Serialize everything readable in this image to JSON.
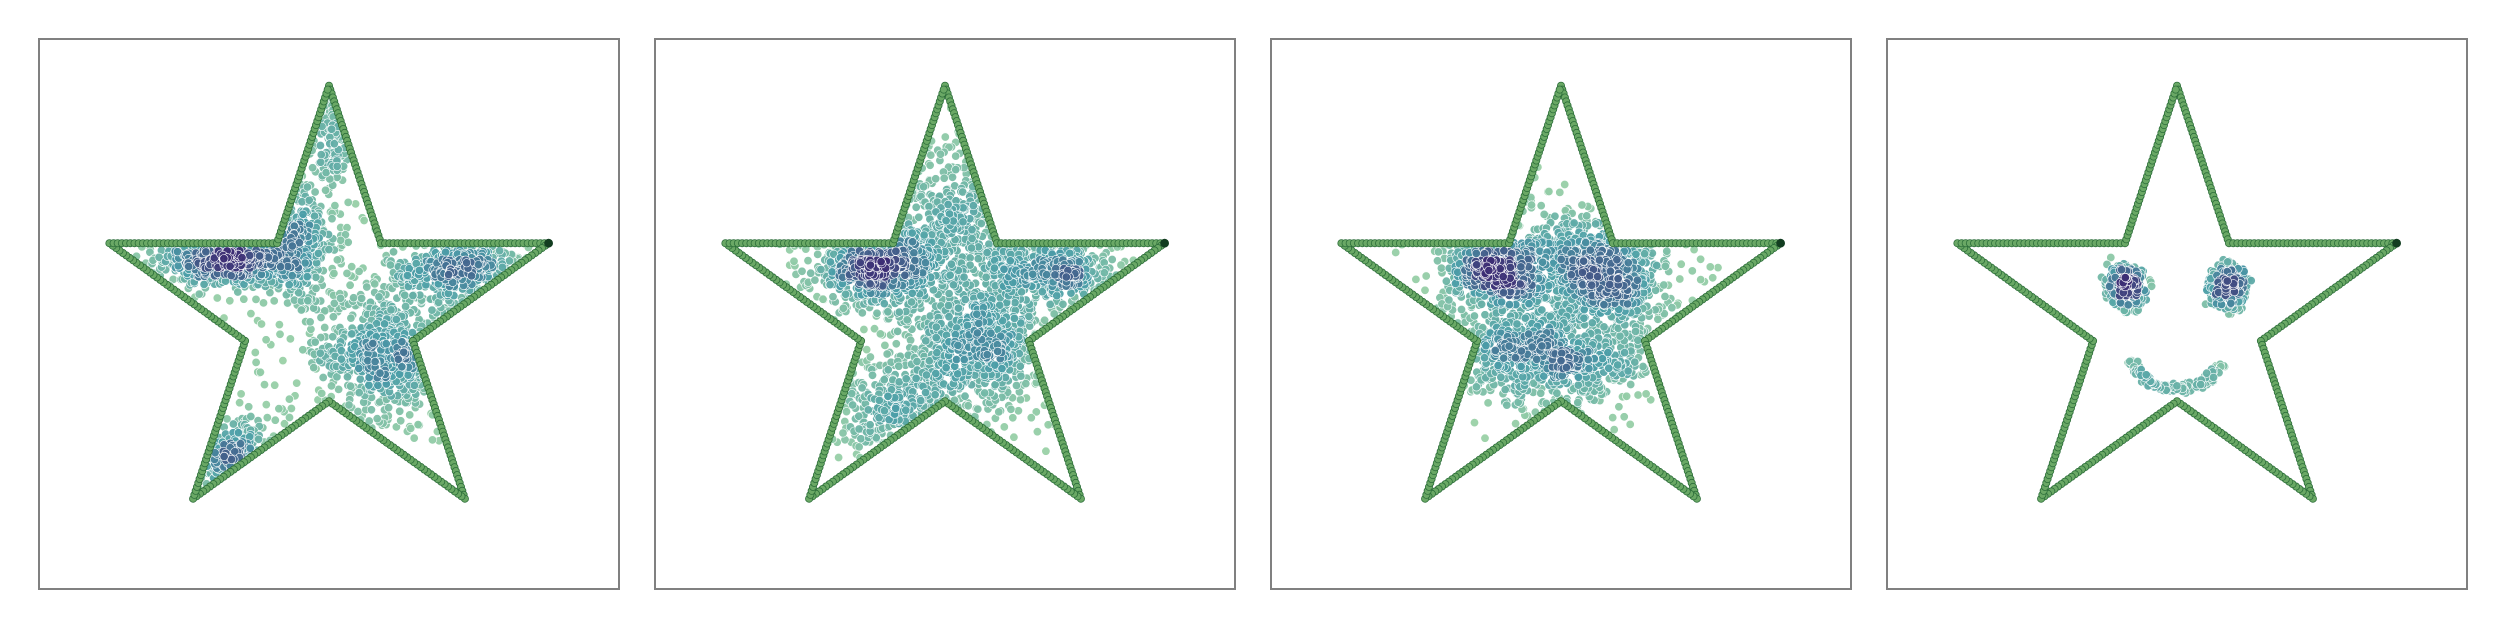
{
  "figure": {
    "panel_count": 4,
    "frame_color": "#808080",
    "background": "#ffffff"
  },
  "colors": {
    "outline_fill": "#6aa865",
    "outline_edge": "#2c6e3a",
    "outline_endpoint": "#123d20",
    "density_low": "#9dd3a6",
    "density_mid": "#4b9ea8",
    "density_high": "#3c2d74",
    "point_edge": "#ffffff"
  },
  "chart_data": [
    {
      "type": "scatter",
      "title": "",
      "xlabel": "",
      "ylabel": "",
      "grid": false,
      "legend": "none",
      "axes_ticks": "hidden",
      "xlim": [
        -1.25,
        1.25
      ],
      "ylim": [
        -1.2,
        1.2
      ],
      "outline": {
        "shape": "five-pointed star",
        "vertices": [
          [
            0.0,
            1.0
          ],
          [
            0.225,
            0.31
          ],
          [
            0.95,
            0.31
          ],
          [
            0.363,
            -0.118
          ],
          [
            0.588,
            -0.809
          ],
          [
            0.0,
            -0.382
          ],
          [
            -0.588,
            -0.809
          ],
          [
            -0.363,
            -0.118
          ],
          [
            -0.95,
            0.31
          ],
          [
            -0.225,
            0.31
          ],
          [
            0.0,
            1.0
          ]
        ],
        "points_per_edge": 40,
        "endpoint": [
          0.95,
          0.31
        ]
      },
      "clusters": [
        {
          "center": [
            -0.43,
            0.25
          ],
          "spread": [
            0.16,
            0.07
          ],
          "count": 520,
          "shape": "blob"
        },
        {
          "center": [
            -0.15,
            0.33
          ],
          "spread": [
            0.09,
            0.17
          ],
          "count": 300,
          "shape": "blob"
        },
        {
          "center": [
            0.02,
            0.78
          ],
          "spread": [
            0.035,
            0.12
          ],
          "count": 90,
          "shape": "blob"
        },
        {
          "center": [
            0.25,
            -0.17
          ],
          "spread": [
            0.15,
            0.14
          ],
          "count": 560,
          "shape": "blob"
        },
        {
          "center": [
            0.57,
            0.19
          ],
          "spread": [
            0.16,
            0.07
          ],
          "count": 380,
          "shape": "blob"
        },
        {
          "center": [
            -0.43,
            -0.63
          ],
          "spread": [
            0.12,
            0.08
          ],
          "count": 200,
          "shape": "blob"
        },
        {
          "center": [
            0.02,
            0.05
          ],
          "spread": [
            0.6,
            0.5
          ],
          "count": 160,
          "shape": "blob"
        }
      ]
    },
    {
      "type": "scatter",
      "title": "",
      "xlabel": "",
      "ylabel": "",
      "grid": false,
      "legend": "none",
      "axes_ticks": "hidden",
      "xlim": [
        -1.25,
        1.25
      ],
      "ylim": [
        -1.2,
        1.2
      ],
      "outline": {
        "shape": "five-pointed star",
        "vertices": [
          [
            0.0,
            1.0
          ],
          [
            0.225,
            0.31
          ],
          [
            0.95,
            0.31
          ],
          [
            0.363,
            -0.118
          ],
          [
            0.588,
            -0.809
          ],
          [
            0.0,
            -0.382
          ],
          [
            -0.588,
            -0.809
          ],
          [
            -0.363,
            -0.118
          ],
          [
            -0.95,
            0.31
          ],
          [
            -0.225,
            0.31
          ],
          [
            0.0,
            1.0
          ]
        ],
        "points_per_edge": 40,
        "endpoint": [
          0.95,
          0.31
        ]
      },
      "clusters": [
        {
          "center": [
            -0.3,
            0.2
          ],
          "spread": [
            0.14,
            0.085
          ],
          "count": 560,
          "shape": "blob"
        },
        {
          "center": [
            0.05,
            0.36
          ],
          "spread": [
            0.16,
            0.2
          ],
          "count": 420,
          "shape": "blob"
        },
        {
          "center": [
            0.16,
            -0.13
          ],
          "spread": [
            0.15,
            0.13
          ],
          "count": 540,
          "shape": "blob"
        },
        {
          "center": [
            0.48,
            0.18
          ],
          "spread": [
            0.14,
            0.08
          ],
          "count": 360,
          "shape": "blob"
        },
        {
          "center": [
            -0.2,
            -0.4
          ],
          "spread": [
            0.18,
            0.12
          ],
          "count": 300,
          "shape": "blob"
        },
        {
          "center": [
            0.0,
            0.05
          ],
          "spread": [
            0.55,
            0.45
          ],
          "count": 220,
          "shape": "blob"
        }
      ]
    },
    {
      "type": "scatter",
      "title": "",
      "xlabel": "",
      "ylabel": "",
      "grid": false,
      "legend": "none",
      "axes_ticks": "hidden",
      "xlim": [
        -1.25,
        1.25
      ],
      "ylim": [
        -1.2,
        1.2
      ],
      "outline": {
        "shape": "five-pointed star",
        "vertices": [
          [
            0.0,
            1.0
          ],
          [
            0.225,
            0.31
          ],
          [
            0.95,
            0.31
          ],
          [
            0.363,
            -0.118
          ],
          [
            0.588,
            -0.809
          ],
          [
            0.0,
            -0.382
          ],
          [
            -0.588,
            -0.809
          ],
          [
            -0.363,
            -0.118
          ],
          [
            -0.95,
            0.31
          ],
          [
            -0.225,
            0.31
          ],
          [
            0.0,
            1.0
          ]
        ],
        "points_per_edge": 40,
        "endpoint": [
          0.95,
          0.31
        ]
      },
      "clusters": [
        {
          "center": [
            -0.27,
            0.18
          ],
          "spread": [
            0.12,
            0.085
          ],
          "count": 520,
          "shape": "blob"
        },
        {
          "center": [
            0.2,
            0.13
          ],
          "spread": [
            0.13,
            0.1
          ],
          "count": 480,
          "shape": "blob"
        },
        {
          "center": [
            0.08,
            0.3
          ],
          "spread": [
            0.18,
            0.09
          ],
          "count": 280,
          "shape": "blob"
        },
        {
          "center": [
            0.05,
            -0.2
          ],
          "spread": [
            0.21,
            0.1
          ],
          "count": 520,
          "shape": "blob"
        },
        {
          "center": [
            -0.25,
            -0.15
          ],
          "spread": [
            0.12,
            0.1
          ],
          "count": 200,
          "shape": "blob"
        },
        {
          "center": [
            0.0,
            0.05
          ],
          "spread": [
            0.4,
            0.3
          ],
          "count": 140,
          "shape": "blob"
        }
      ]
    },
    {
      "type": "scatter",
      "title": "",
      "xlabel": "",
      "ylabel": "",
      "grid": false,
      "legend": "none",
      "axes_ticks": "hidden",
      "xlim": [
        -1.25,
        1.25
      ],
      "ylim": [
        -1.2,
        1.2
      ],
      "outline": {
        "shape": "five-pointed star",
        "vertices": [
          [
            0.0,
            1.0
          ],
          [
            0.225,
            0.31
          ],
          [
            0.95,
            0.31
          ],
          [
            0.363,
            -0.118
          ],
          [
            0.588,
            -0.809
          ],
          [
            0.0,
            -0.382
          ],
          [
            -0.588,
            -0.809
          ],
          [
            -0.363,
            -0.118
          ],
          [
            -0.95,
            0.31
          ],
          [
            -0.225,
            0.31
          ],
          [
            0.0,
            1.0
          ]
        ],
        "points_per_edge": 40,
        "endpoint": [
          0.95,
          0.31
        ]
      },
      "clusters": [
        {
          "center": [
            -0.2,
            0.12
          ],
          "spread": [
            0.04,
            0.04
          ],
          "count": 160,
          "shape": "blob"
        },
        {
          "center": [
            0.24,
            0.12
          ],
          "spread": [
            0.04,
            0.04
          ],
          "count": 160,
          "shape": "blob"
        },
        {
          "center": [
            -0.2,
            0.12
          ],
          "radius": 0.095,
          "arc": [
            100,
            290
          ],
          "count": 60,
          "shape": "ring"
        },
        {
          "center": [
            0.24,
            0.12
          ],
          "radius": 0.095,
          "arc": [
            100,
            290
          ],
          "count": 60,
          "shape": "ring"
        },
        {
          "center": [
            0.0,
            -0.11
          ],
          "radius": 0.22,
          "arc": [
            205,
            330
          ],
          "count": 140,
          "shape": "ring"
        }
      ]
    }
  ]
}
